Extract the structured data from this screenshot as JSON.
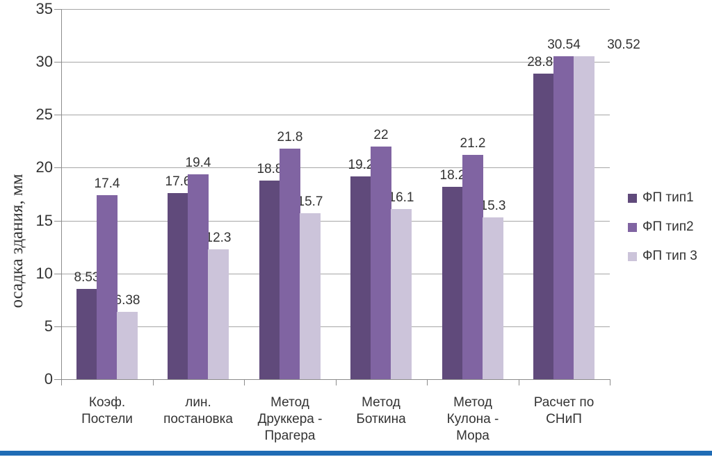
{
  "chart_data": {
    "type": "bar",
    "title": "",
    "xlabel": "",
    "ylabel": "осадка здания, мм",
    "ylim": [
      0,
      35
    ],
    "ytick_step": 5,
    "grid": true,
    "legend_position": "right",
    "categories": [
      "Коэф.\nПостели",
      "лин.\nпостановка",
      "Метод\nДруккера -\nПрагера",
      "Метод\nБоткина",
      "Метод\nКулона -\nМора",
      "Расчет по\nСНиП"
    ],
    "series": [
      {
        "name": "ФП тип1",
        "color": "#604a7b",
        "values": [
          8.53,
          17.6,
          18.8,
          19.2,
          18.2,
          28.87
        ]
      },
      {
        "name": "ФП тип2",
        "color": "#8064a2",
        "values": [
          17.4,
          19.4,
          21.8,
          22,
          21.2,
          30.54
        ]
      },
      {
        "name": "ФП тип 3",
        "color": "#ccc4da",
        "values": [
          6.38,
          12.3,
          15.7,
          16.1,
          15.3,
          30.52
        ],
        "label_dx": [
          0,
          0,
          0,
          0,
          0,
          57
        ]
      }
    ]
  },
  "colors": {
    "gridline": "#a6a6a6",
    "axis": "#8c8c8c",
    "text": "#333333",
    "bottom_rule": "#1f6cb5",
    "background": "#ffffff"
  }
}
